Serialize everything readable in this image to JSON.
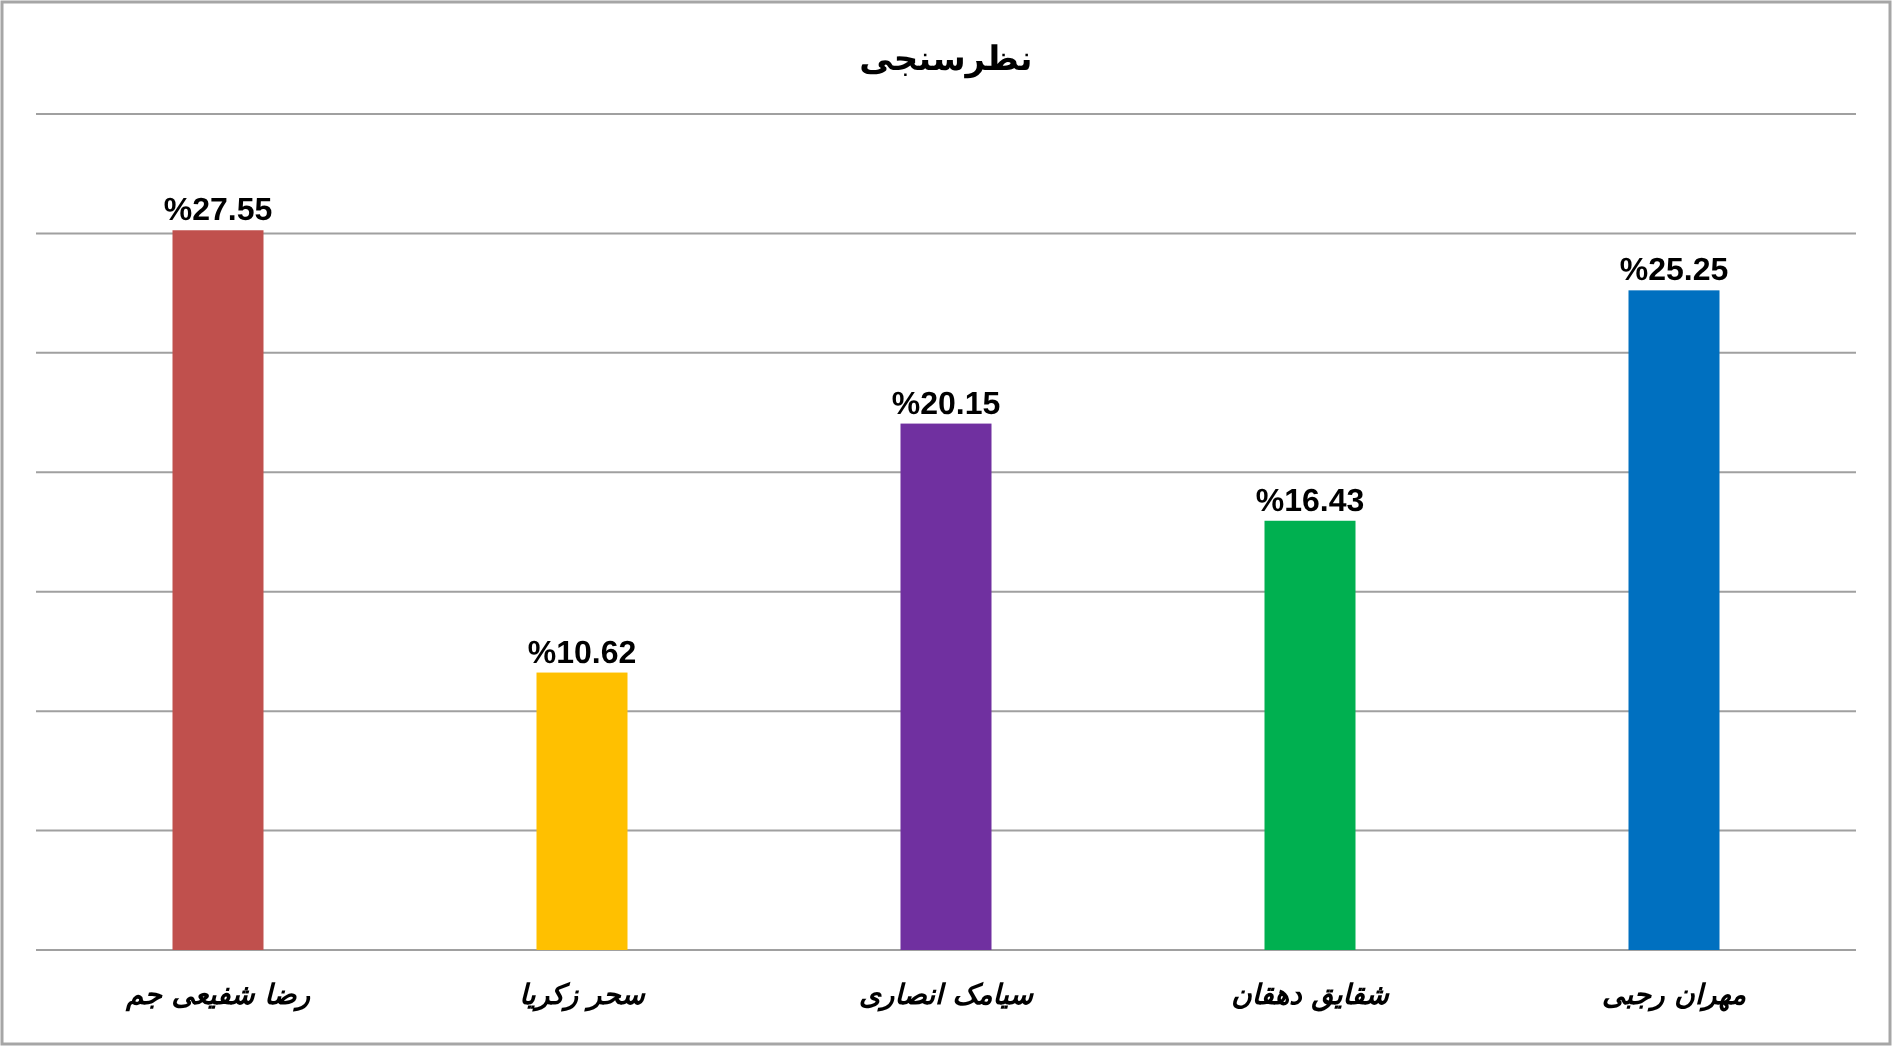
{
  "chart_data": {
    "type": "bar",
    "title": "نظرسنجی",
    "categories": [
      "رضا شفیعی جم",
      "سحر زکریا",
      "سیامک انصاری",
      "شقایق دهقان",
      "مهران رجبی"
    ],
    "values": [
      27.55,
      10.62,
      20.15,
      16.43,
      25.25
    ],
    "value_labels": [
      "%27.55",
      "%10.62",
      "%20.15",
      "%16.43",
      "%25.25"
    ],
    "colors": [
      "#c0504d",
      "#ffc000",
      "#7030a0",
      "#00b050",
      "#0070c0"
    ],
    "ylim": [
      0,
      32
    ],
    "yticks": [
      {
        "value": 0,
        "label": null
      },
      {
        "value": 4.57,
        "label": null
      },
      {
        "value": 9.14,
        "label": null
      },
      {
        "value": 13.71,
        "label": null
      },
      {
        "value": 18.29,
        "label": null
      },
      {
        "value": 22.86,
        "label": null
      },
      {
        "value": 27.43,
        "label": null
      },
      {
        "value": 32,
        "label": null
      }
    ],
    "grid": "y",
    "tick_labels": "x"
  }
}
